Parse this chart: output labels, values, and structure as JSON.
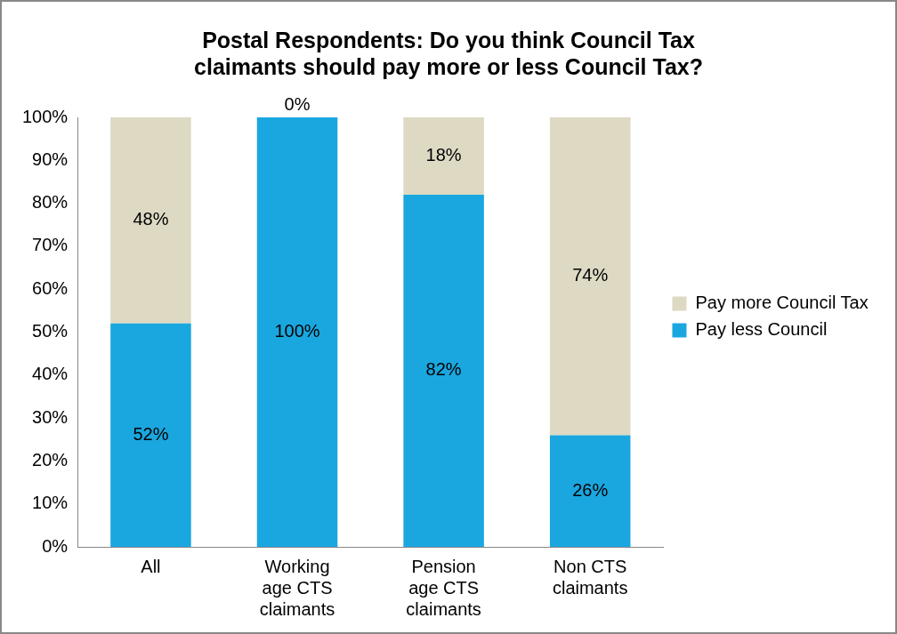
{
  "chart_data": {
    "type": "bar",
    "title": "Postal Respondents: Do you think Council Tax claimants should pay more or less Council Tax?",
    "categories": [
      "All",
      "Working age CTS claimants",
      "Pension age CTS claimants",
      "Non CTS claimants"
    ],
    "stacked": true,
    "series": [
      {
        "name": "Pay less Council",
        "color": "#1aa7e0",
        "values": [
          52,
          100,
          82,
          26
        ],
        "value_labels": [
          "52%",
          "100%",
          "82%",
          "26%"
        ]
      },
      {
        "name": "Pay more Council Tax",
        "color": "#ddd9c3",
        "values": [
          48,
          0,
          18,
          74
        ],
        "value_labels": [
          "48%",
          "0%",
          "18%",
          "74%"
        ]
      }
    ],
    "ylim": [
      0,
      100
    ],
    "yticks": [
      {
        "value": 0,
        "label": "0%"
      },
      {
        "value": 10,
        "label": "10%"
      },
      {
        "value": 20,
        "label": "20%"
      },
      {
        "value": 30,
        "label": "30%"
      },
      {
        "value": 40,
        "label": "40%"
      },
      {
        "value": 50,
        "label": "50%"
      },
      {
        "value": 60,
        "label": "60%"
      },
      {
        "value": 70,
        "label": "70%"
      },
      {
        "value": 80,
        "label": "80%"
      },
      {
        "value": 90,
        "label": "90%"
      },
      {
        "value": 100,
        "label": "100%"
      }
    ],
    "grid": false,
    "legend": "right"
  }
}
